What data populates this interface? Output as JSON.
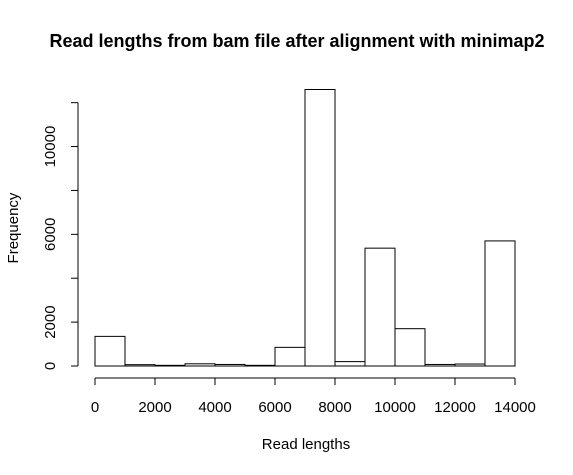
{
  "chart_data": {
    "type": "bar",
    "subtype": "histogram",
    "title": "Read lengths from bam file after alignment with minimap2",
    "xlabel": "Read lengths",
    "ylabel": "Frequency",
    "bin_width": 1000,
    "bins": [
      {
        "start": 0,
        "end": 1000,
        "count": 1350
      },
      {
        "start": 1000,
        "end": 2000,
        "count": 60
      },
      {
        "start": 2000,
        "end": 3000,
        "count": 30
      },
      {
        "start": 3000,
        "end": 4000,
        "count": 100
      },
      {
        "start": 4000,
        "end": 5000,
        "count": 70
      },
      {
        "start": 5000,
        "end": 6000,
        "count": 30
      },
      {
        "start": 6000,
        "end": 7000,
        "count": 850
      },
      {
        "start": 7000,
        "end": 8000,
        "count": 12600
      },
      {
        "start": 8000,
        "end": 9000,
        "count": 200
      },
      {
        "start": 9000,
        "end": 10000,
        "count": 5370
      },
      {
        "start": 10000,
        "end": 11000,
        "count": 1700
      },
      {
        "start": 11000,
        "end": 12000,
        "count": 70
      },
      {
        "start": 12000,
        "end": 13000,
        "count": 90
      },
      {
        "start": 13000,
        "end": 14000,
        "count": 5700
      }
    ],
    "x_ticks": [
      0,
      2000,
      4000,
      6000,
      8000,
      10000,
      12000,
      14000
    ],
    "y_ticks": [
      0,
      2000,
      4000,
      6000,
      8000,
      10000,
      12000
    ],
    "y_tick_labels": [
      "0",
      "2000",
      "",
      "6000",
      "",
      "10000",
      ""
    ],
    "xlim": [
      0,
      14000
    ],
    "ylim": [
      0,
      12600
    ],
    "grid": false,
    "legend": "none",
    "bar_fill": "#ffffff",
    "bar_stroke": "#000000"
  }
}
